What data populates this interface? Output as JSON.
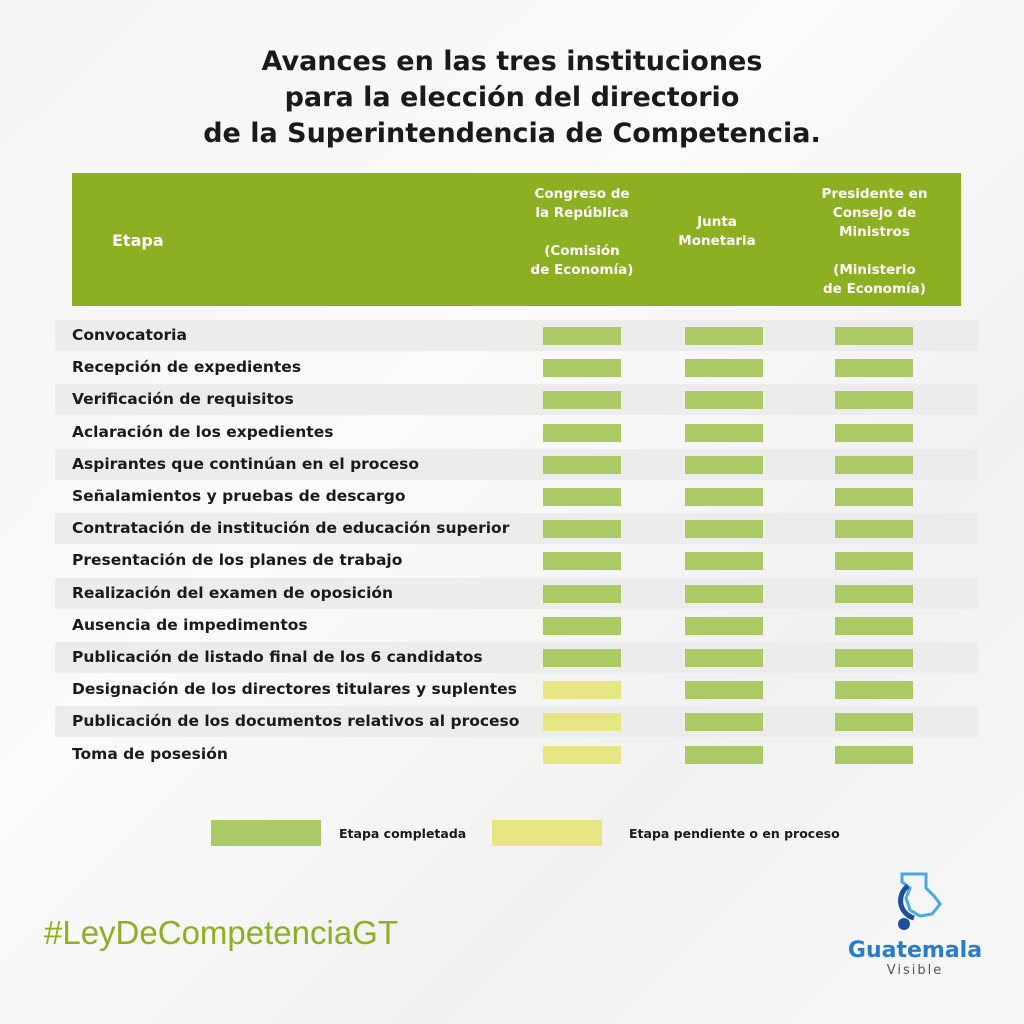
{
  "title": [
    "Avances en las tres instituciones",
    "para la elección del directorio",
    "de la Superintendencia de Competencia."
  ],
  "header": {
    "etapa": "Etapa",
    "columns": [
      "Congreso de\nla República\n\n(Comisión\nde Economía)",
      "Junta\nMonetaria",
      "Presidente en\nConsejo de\nMinistros\n\n(Ministerio\nde Economía)"
    ]
  },
  "colors": {
    "completed": "#abc964",
    "pending": "#e8e683",
    "header": "#8db023"
  },
  "rows": [
    {
      "etapa": "Convocatoria",
      "status": [
        "completed",
        "completed",
        "completed"
      ]
    },
    {
      "etapa": "Recepción de expedientes",
      "status": [
        "completed",
        "completed",
        "completed"
      ]
    },
    {
      "etapa": "Verificación de requisitos",
      "status": [
        "completed",
        "completed",
        "completed"
      ]
    },
    {
      "etapa": "Aclaración de los expedientes",
      "status": [
        "completed",
        "completed",
        "completed"
      ]
    },
    {
      "etapa": "Aspirantes que continúan en el proceso",
      "status": [
        "completed",
        "completed",
        "completed"
      ]
    },
    {
      "etapa": "Señalamientos y pruebas de descargo",
      "status": [
        "completed",
        "completed",
        "completed"
      ]
    },
    {
      "etapa": "Contratación de institución de educación superior",
      "status": [
        "completed",
        "completed",
        "completed"
      ]
    },
    {
      "etapa": "Presentación de los planes de trabajo",
      "status": [
        "completed",
        "completed",
        "completed"
      ]
    },
    {
      "etapa": "Realización del examen de oposición",
      "status": [
        "completed",
        "completed",
        "completed"
      ]
    },
    {
      "etapa": "Ausencia de impedimentos",
      "status": [
        "completed",
        "completed",
        "completed"
      ]
    },
    {
      "etapa": "Publicación de listado final de los 6 candidatos",
      "status": [
        "completed",
        "completed",
        "completed"
      ]
    },
    {
      "etapa": "Designación de los directores titulares y suplentes",
      "status": [
        "pending",
        "completed",
        "completed"
      ]
    },
    {
      "etapa": "Publicación de los documentos relativos al proceso",
      "status": [
        "pending",
        "completed",
        "completed"
      ]
    },
    {
      "etapa": "Toma de posesión",
      "status": [
        "pending",
        "completed",
        "completed"
      ]
    }
  ],
  "legend": {
    "completed": "Etapa completada",
    "pending": "Etapa pendiente o en proceso"
  },
  "hashtag": "#LeyDeCompetenciaGT",
  "logo": {
    "name": "Guatemala",
    "sub": "Visible"
  }
}
